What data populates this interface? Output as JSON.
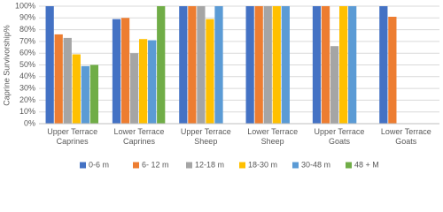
{
  "chart_data": {
    "type": "bar",
    "y_label": "Caprine Survivorship%",
    "categories": [
      "Upper Terrace Caprines",
      "Lower Terrace Caprines",
      "Upper Terrace Sheep",
      "Lower Terrace Sheep",
      "Upper Terrace Goats",
      "Lower Terrace Goats"
    ],
    "series": [
      {
        "name": "0-6 m",
        "color": "#4472c4",
        "values": [
          100,
          89,
          100,
          100,
          100,
          100
        ]
      },
      {
        "name": "6- 12 m",
        "color": "#ed7d31",
        "values": [
          76,
          90,
          100,
          100,
          100,
          91
        ]
      },
      {
        "name": "12-18 m",
        "color": "#a5a5a5",
        "values": [
          73,
          60,
          100,
          100,
          66,
          null
        ]
      },
      {
        "name": "18-30 m",
        "color": "#ffc000",
        "values": [
          59,
          72,
          89,
          100,
          100,
          null
        ]
      },
      {
        "name": "30-48 m",
        "color": "#5b9bd5",
        "values": [
          49,
          71,
          100,
          100,
          100,
          null
        ]
      },
      {
        "name": "48 + M",
        "color": "#70ad47",
        "values": [
          50,
          100,
          null,
          null,
          null,
          null
        ]
      }
    ],
    "ylim": [
      0,
      100
    ],
    "yticks": [
      {
        "value": 0,
        "label": "0%"
      },
      {
        "value": 10,
        "label": "10%"
      },
      {
        "value": 20,
        "label": "20%"
      },
      {
        "value": 30,
        "label": "30%"
      },
      {
        "value": 40,
        "label": "40%"
      },
      {
        "value": 50,
        "label": "50%"
      },
      {
        "value": 60,
        "label": "60%"
      },
      {
        "value": 70,
        "label": "70%"
      },
      {
        "value": 80,
        "label": "80%"
      },
      {
        "value": 90,
        "label": "90%"
      },
      {
        "value": 100,
        "label": "100%"
      }
    ],
    "grid": true,
    "legend": "bottom"
  }
}
